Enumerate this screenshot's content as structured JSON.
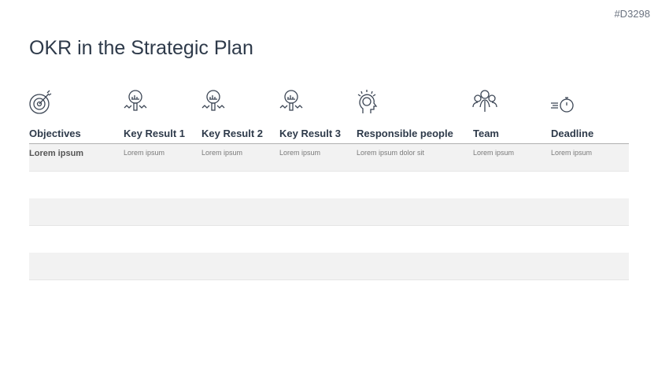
{
  "slide_code": "#D3298",
  "title": "OKR in the Strategic Plan",
  "columns": [
    {
      "label": "Objectives",
      "icon": "target-icon"
    },
    {
      "label": "Key Result 1",
      "icon": "magnifier-chart-icon"
    },
    {
      "label": "Key Result 2",
      "icon": "magnifier-chart-icon"
    },
    {
      "label": "Key Result 3",
      "icon": "magnifier-chart-icon"
    },
    {
      "label": "Responsible people",
      "icon": "head-brain-icon"
    },
    {
      "label": "Team",
      "icon": "team-icon"
    },
    {
      "label": "Deadline",
      "icon": "stopwatch-icon"
    }
  ],
  "rows": [
    [
      "Lorem ipsum",
      "Lorem ipsum",
      "Lorem ipsum",
      "Lorem ipsum",
      "Lorem ipsum dolor sit",
      "Lorem ipsum",
      "Lorem ipsum"
    ],
    [
      "",
      "",
      "",
      "",
      "",
      "",
      ""
    ],
    [
      "",
      "",
      "",
      "",
      "",
      "",
      ""
    ],
    [
      "",
      "",
      "",
      "",
      "",
      "",
      ""
    ],
    [
      "",
      "",
      "",
      "",
      "",
      "",
      ""
    ]
  ]
}
